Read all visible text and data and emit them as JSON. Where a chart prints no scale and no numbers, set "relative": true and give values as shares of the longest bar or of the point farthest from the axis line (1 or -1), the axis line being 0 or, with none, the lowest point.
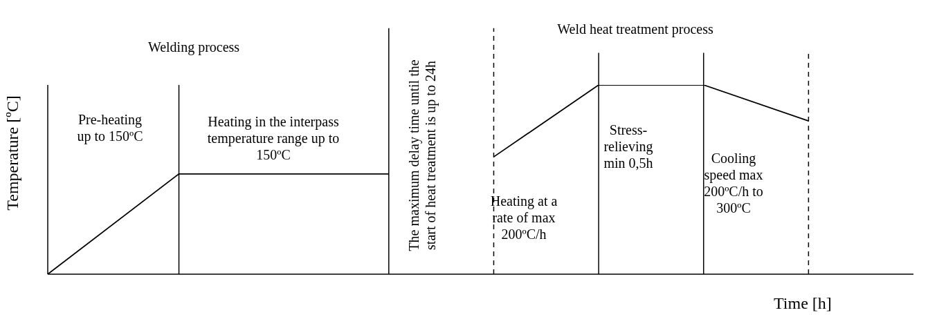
{
  "chart_data": {
    "type": "line",
    "relative": true,
    "xlabel": "Time [h]",
    "ylabel": "Temperature [ºC]",
    "categories": [
      null,
      null,
      null,
      null,
      null,
      null,
      null,
      null,
      null,
      null,
      null,
      null,
      null,
      null,
      null,
      null,
      null,
      null,
      null,
      null,
      null,
      null,
      null,
      null,
      null,
      null,
      null,
      null,
      null,
      null,
      null,
      null,
      null,
      null
    ],
    "series": [
      {
        "color": "#000000",
        "values": [
          0,
          null,
          null,
          null,
          null,
          0.53,
          null,
          null,
          null,
          null,
          null,
          null,
          null,
          0.53,
          null,
          null,
          null,
          null,
          null,
          null,
          null,
          null,
          null,
          null,
          null,
          null,
          null,
          null,
          null,
          null,
          null,
          null,
          null,
          null
        ]
      },
      {
        "color": "#000000",
        "values": [
          null,
          null,
          null,
          null,
          null,
          null,
          null,
          null,
          null,
          null,
          null,
          null,
          null,
          null,
          null,
          null,
          null,
          0.62,
          null,
          null,
          null,
          1,
          null,
          null,
          null,
          1,
          null,
          null,
          null,
          0.81,
          null,
          null,
          null,
          null
        ]
      }
    ],
    "annotations": [
      "Welding process",
      "Weld heat treatment process",
      "Pre-heating up to 150ºC",
      "Heating in the interpass temperature range up to 150ºC",
      "The maximum delay time until the start of heat treatment is up to 24h",
      "Heating at a rate of max 200ºC/h",
      "Stress-relieving min 0,5h",
      "Cooling speed max 200ºC/h to 300ºC"
    ],
    "grid": "x",
    "legend": false,
    "marker": "none",
    "line_style": "solid"
  }
}
